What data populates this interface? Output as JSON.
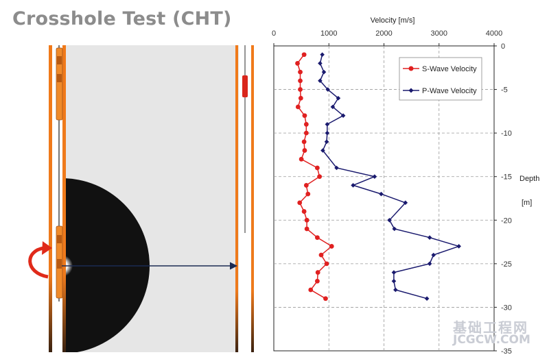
{
  "title": "Crosshole Test (CHT)",
  "watermark": {
    "cn": "基础工程网",
    "en": "JCGCW.COM"
  },
  "chart_data": {
    "type": "line",
    "xlabel": "Velocity [m/s]",
    "ylabel_line1": "Depth",
    "ylabel_line2": "[m]",
    "xlim": [
      0,
      4000
    ],
    "ylim": [
      0,
      -35
    ],
    "xticks": [
      0,
      1000,
      2000,
      3000,
      4000
    ],
    "yticks": [
      0,
      -5,
      -10,
      -15,
      -20,
      -25,
      -30,
      -35
    ],
    "x_axis_position": "top",
    "y_axis_position": "right",
    "grid": "dashed",
    "legend_placement": "top-right",
    "series": [
      {
        "name": "S-Wave Velocity",
        "color": "#e02020",
        "marker": "circle",
        "points": [
          [
            550,
            -1
          ],
          [
            430,
            -2
          ],
          [
            480,
            -3
          ],
          [
            480,
            -4
          ],
          [
            480,
            -5
          ],
          [
            490,
            -6
          ],
          [
            440,
            -7
          ],
          [
            560,
            -8
          ],
          [
            590,
            -9
          ],
          [
            590,
            -10
          ],
          [
            550,
            -11
          ],
          [
            560,
            -12
          ],
          [
            500,
            -13
          ],
          [
            790,
            -14
          ],
          [
            830,
            -15
          ],
          [
            590,
            -16
          ],
          [
            620,
            -17
          ],
          [
            470,
            -18
          ],
          [
            550,
            -19
          ],
          [
            600,
            -20
          ],
          [
            600,
            -21
          ],
          [
            790,
            -22
          ],
          [
            1050,
            -23
          ],
          [
            860,
            -24
          ],
          [
            960,
            -25
          ],
          [
            800,
            -26
          ],
          [
            790,
            -27
          ],
          [
            670,
            -28
          ],
          [
            940,
            -29
          ]
        ]
      },
      {
        "name": "P-Wave Velocity",
        "color": "#1a1a6e",
        "marker": "diamond",
        "points": [
          [
            880,
            -1
          ],
          [
            840,
            -2
          ],
          [
            910,
            -3
          ],
          [
            840,
            -4
          ],
          [
            980,
            -5
          ],
          [
            1170,
            -6
          ],
          [
            1070,
            -7
          ],
          [
            1260,
            -8
          ],
          [
            970,
            -9
          ],
          [
            970,
            -10
          ],
          [
            960,
            -11
          ],
          [
            890,
            -12
          ],
          [
            1140,
            -14
          ],
          [
            1830,
            -15
          ],
          [
            1440,
            -16
          ],
          [
            1950,
            -17
          ],
          [
            2390,
            -18
          ],
          [
            2100,
            -20
          ],
          [
            2190,
            -21
          ],
          [
            2830,
            -22
          ],
          [
            3360,
            -23
          ],
          [
            2830,
            -25
          ],
          [
            2900,
            -24
          ],
          [
            2180,
            -26
          ],
          [
            2180,
            -27
          ],
          [
            2210,
            -28
          ],
          [
            2780,
            -29
          ]
        ]
      }
    ]
  }
}
